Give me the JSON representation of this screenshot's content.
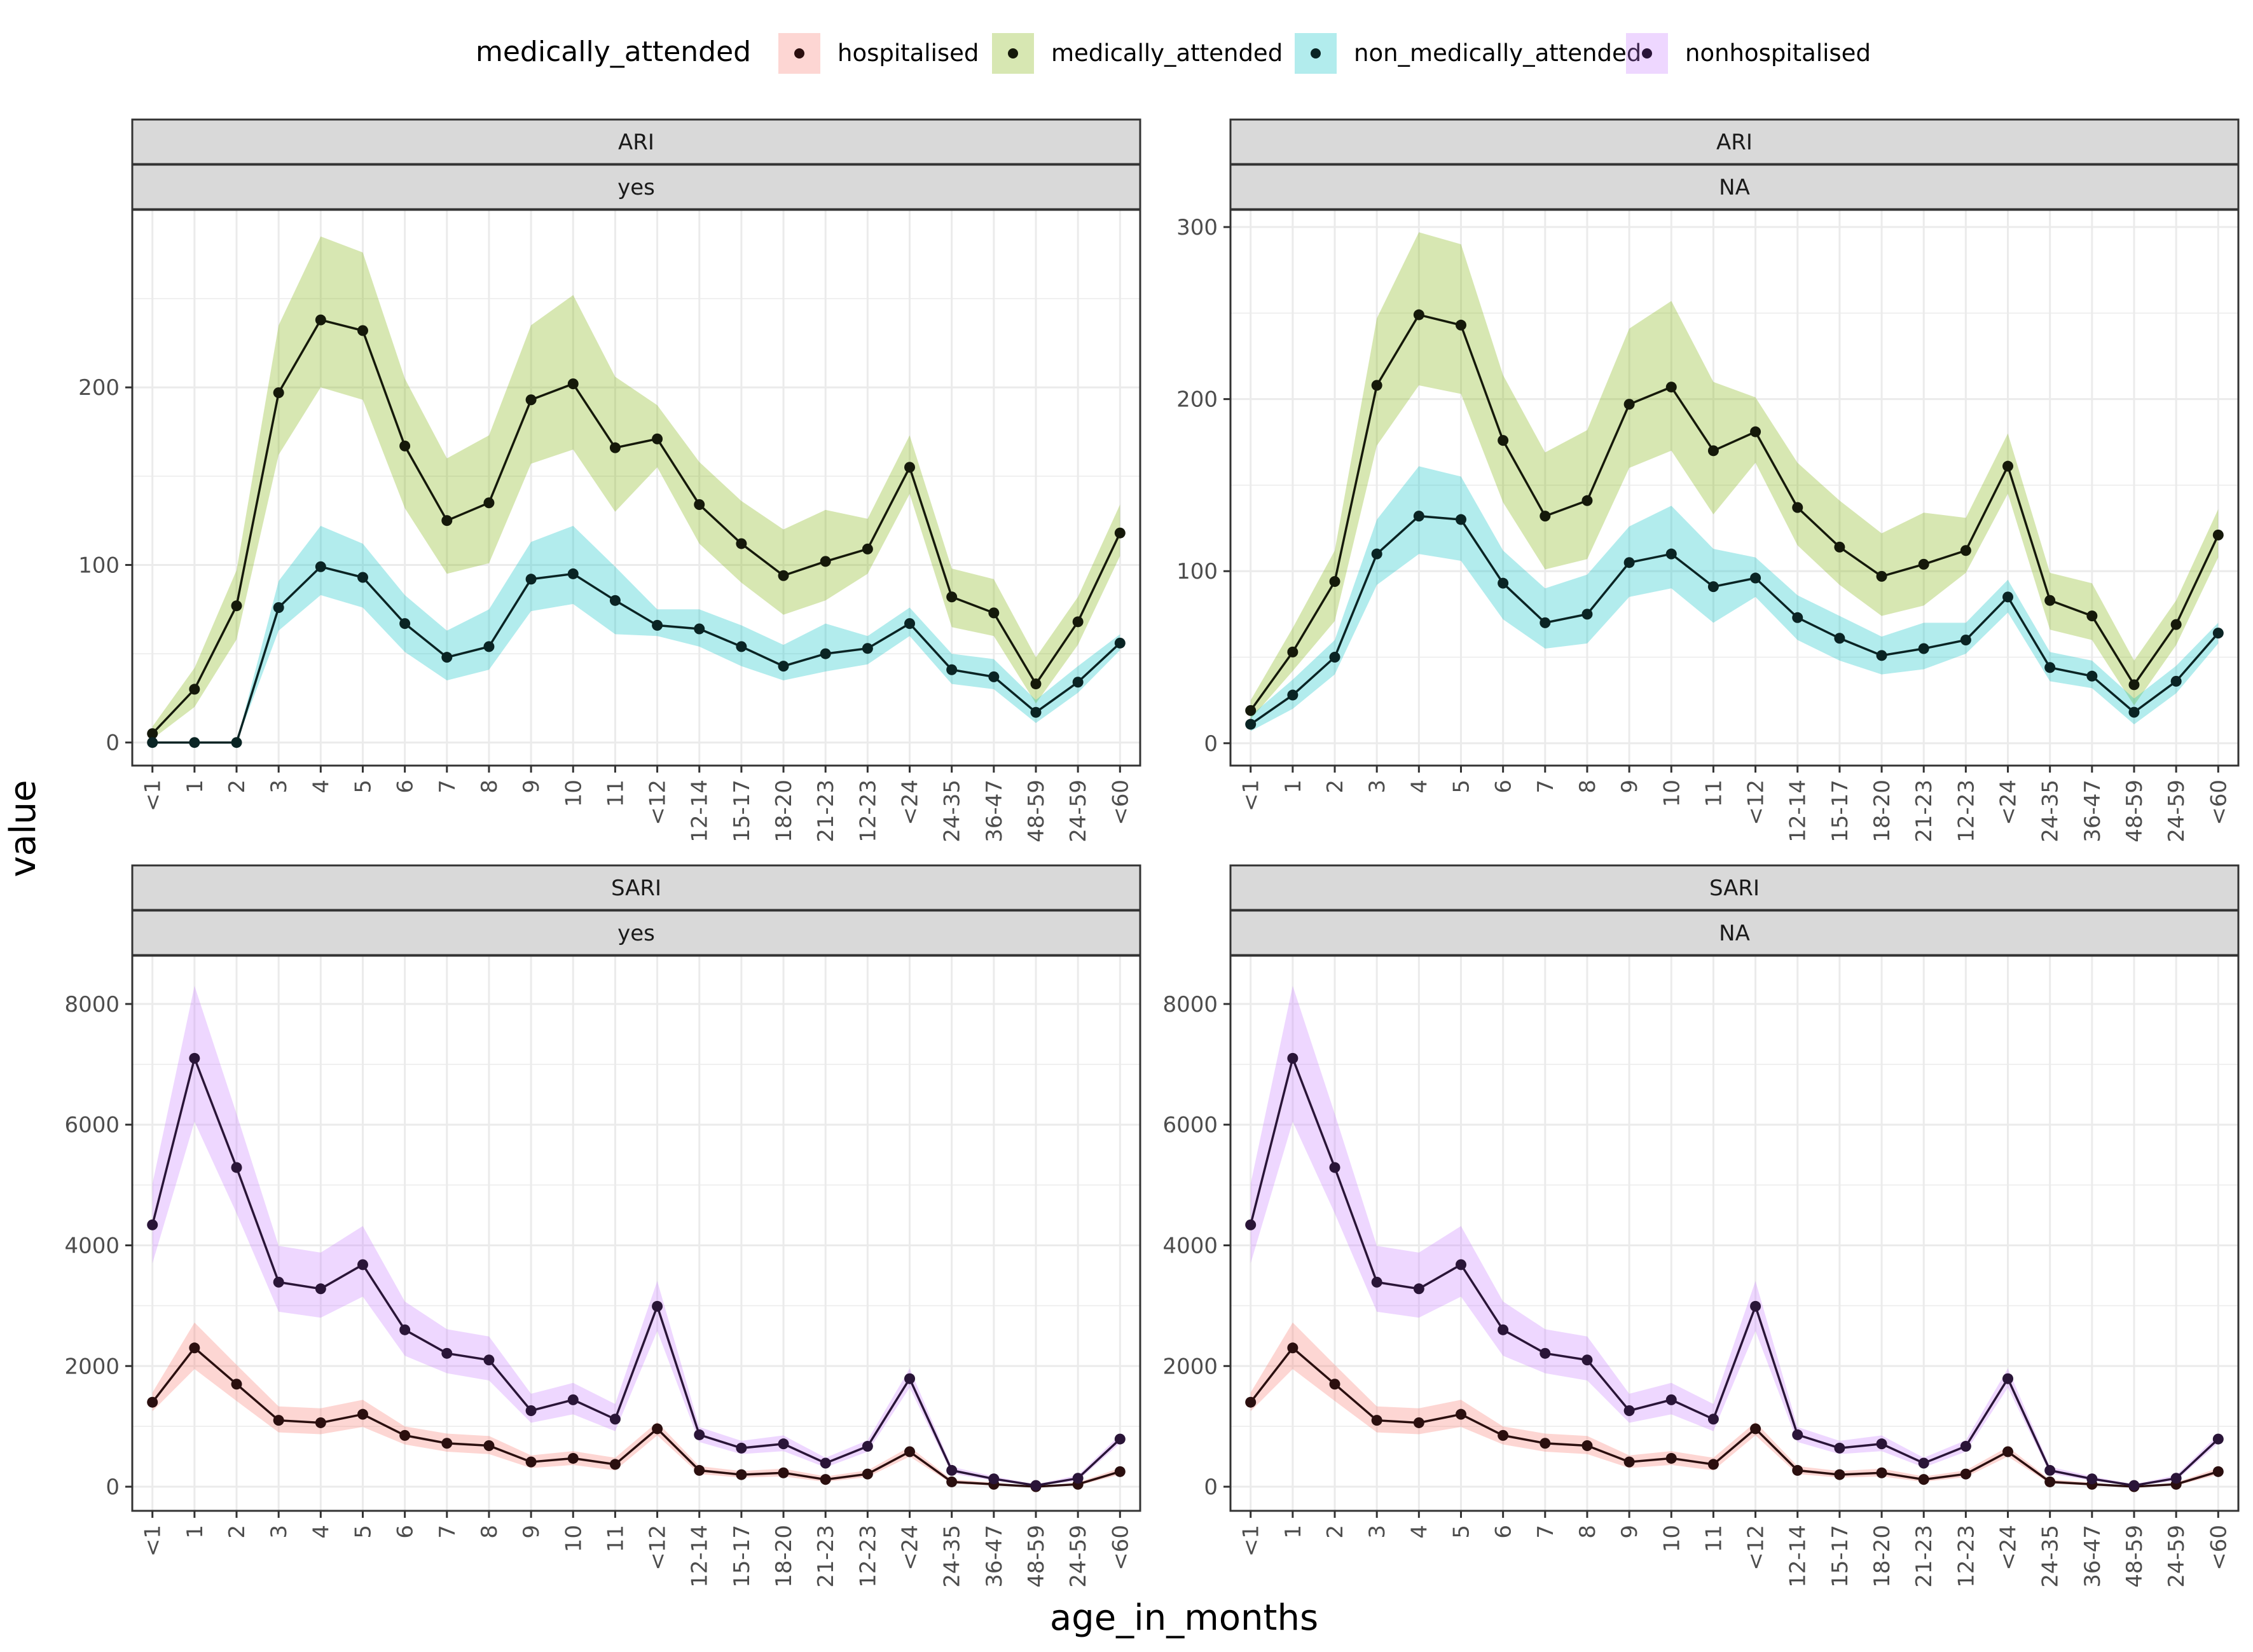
{
  "chart_data": {
    "type": "line",
    "xlabel": "age_in_months",
    "ylabel": "value",
    "legend": {
      "title": "medically_attended",
      "position": "top",
      "entries": [
        {
          "name": "hospitalised",
          "fill": "#F8766D"
        },
        {
          "name": "medically_attended",
          "fill": "#7CAE00"
        },
        {
          "name": "non_medically_attended",
          "fill": "#00BFC4"
        },
        {
          "name": "nonhospitalised",
          "fill": "#C77CFF"
        }
      ]
    },
    "colors": {
      "hospitalised": "#F8766D",
      "medically_attended": "#7CAE00",
      "non_medically_attended": "#00BFC4",
      "nonhospitalised": "#C77CFF",
      "line_hospitalised": "#2b0f0f",
      "line_medically_attended": "#15190a",
      "line_non_medically_attended": "#0a2424",
      "line_nonhospitalised": "#2a1538"
    },
    "categories": [
      "<1",
      "1",
      "2",
      "3",
      "4",
      "5",
      "6",
      "7",
      "8",
      "9",
      "10",
      "11",
      "<12",
      "12-14",
      "15-17",
      "18-20",
      "21-23",
      "12-23",
      "<24",
      "24-35",
      "36-47",
      "48-59",
      "24-59",
      "<60"
    ],
    "panels": [
      {
        "strip_top": "ARI",
        "strip_bottom": "yes",
        "ylim": [
          -13,
          300
        ],
        "yticks": [
          0,
          100,
          200
        ],
        "series": [
          {
            "name": "medically_attended",
            "values": [
              5,
              30,
              77,
              197,
              238,
              232,
              167,
              125,
              135,
              193,
              202,
              166,
              171,
              134,
              112,
              94,
              102,
              109,
              155,
              82,
              73,
              33,
              68,
              118
            ],
            "lower": [
              2,
              20,
              58,
              162,
              200,
              193,
              132,
              95,
              101,
              157,
              165,
              130,
              155,
              112,
              90,
              72,
              80,
              95,
              140,
              65,
              60,
              22,
              55,
              105
            ],
            "upper": [
              9,
              42,
              97,
              235,
              285,
              276,
              205,
              160,
              173,
              235,
              252,
              206,
              190,
              158,
              136,
              120,
              131,
              126,
              173,
              98,
              92,
              48,
              82,
              134
            ]
          },
          {
            "name": "non_medically_attended",
            "values": [
              0,
              0,
              0,
              76,
              99,
              93,
              67,
              48,
              54,
              92,
              95,
              80,
              66,
              64,
              54,
              43,
              50,
              53,
              67,
              41,
              37,
              17,
              34,
              56
            ],
            "lower": [
              0,
              0,
              0,
              63,
              83,
              76,
              51,
              35,
              41,
              74,
              78,
              61,
              60,
              54,
              43,
              35,
              40,
              44,
              60,
              33,
              30,
              11,
              28,
              52
            ],
            "upper": [
              0,
              0,
              0,
              91,
              122,
              112,
              83,
              63,
              75,
              113,
              122,
              99,
              75,
              75,
              66,
              55,
              67,
              60,
              76,
              50,
              47,
              24,
              43,
              61
            ]
          }
        ]
      },
      {
        "strip_top": "ARI",
        "strip_bottom": "NA",
        "ylim": [
          -13,
          310
        ],
        "yticks": [
          0,
          100,
          200,
          300
        ],
        "series": [
          {
            "name": "medically_attended",
            "values": [
              19,
              53,
              94,
              208,
              249,
              243,
              176,
              132,
              141,
              197,
              207,
              170,
              181,
              137,
              114,
              97,
              104,
              112,
              161,
              83,
              74,
              34,
              69,
              121
            ],
            "lower": [
              14,
              42,
              71,
              173,
              208,
              203,
              140,
              101,
              107,
              160,
              170,
              133,
              163,
              115,
              92,
              74,
              80,
              99,
              145,
              66,
              60,
              22,
              57,
              108
            ],
            "upper": [
              25,
              67,
              112,
              247,
              297,
              290,
              214,
              169,
              182,
              241,
              257,
              210,
              201,
              163,
              141,
              122,
              134,
              131,
              180,
              99,
              93,
              48,
              83,
              136
            ]
          },
          {
            "name": "non_medically_attended",
            "values": [
              11,
              28,
              50,
              110,
              132,
              130,
              93,
              70,
              75,
              105,
              110,
              91,
              96,
              73,
              61,
              51,
              55,
              60,
              85,
              44,
              39,
              18,
              36,
              64
            ],
            "lower": [
              7,
              20,
              40,
              92,
              110,
              106,
              72,
              55,
              58,
              85,
              90,
              70,
              85,
              60,
              48,
              40,
              43,
              52,
              76,
              36,
              32,
              11,
              29,
              58
            ],
            "upper": [
              16,
              37,
              60,
              130,
              161,
              155,
              112,
              90,
              98,
              126,
              138,
              113,
              108,
              86,
              74,
              62,
              70,
              70,
              95,
              53,
              48,
              26,
              45,
              70
            ]
          }
        ]
      },
      {
        "strip_top": "SARI",
        "strip_bottom": "yes",
        "ylim": [
          -400,
          8800
        ],
        "yticks": [
          0,
          2000,
          4000,
          6000,
          8000
        ],
        "series": [
          {
            "name": "hospitalised",
            "values": [
              1400,
              2300,
              1700,
              1100,
              1060,
              1200,
              850,
              720,
              680,
              410,
              470,
              370,
              960,
              270,
              200,
              230,
              120,
              210,
              580,
              80,
              40,
              0,
              40,
              250
            ],
            "lower": [
              1250,
              1950,
              1420,
              900,
              870,
              990,
              700,
              580,
              540,
              310,
              360,
              270,
              850,
              210,
              150,
              170,
              80,
              160,
              500,
              50,
              20,
              0,
              20,
              200
            ],
            "upper": [
              1560,
              2720,
              2020,
              1330,
              1300,
              1440,
              1000,
              880,
              840,
              520,
              590,
              480,
              1070,
              340,
              260,
              300,
              170,
              270,
              660,
              120,
              70,
              0,
              70,
              310
            ]
          },
          {
            "name": "nonhospitalised",
            "values": [
              4340,
              7100,
              5290,
              3390,
              3280,
              3680,
              2600,
              2210,
              2100,
              1260,
              1440,
              1120,
              2990,
              860,
              640,
              710,
              390,
              670,
              1790,
              270,
              130,
              20,
              140,
              790
            ],
            "lower": [
              3700,
              6050,
              4530,
              2900,
              2800,
              3150,
              2170,
              1880,
              1760,
              1060,
              1200,
              920,
              2580,
              740,
              540,
              590,
              320,
              580,
              1640,
              220,
              100,
              10,
              100,
              720
            ],
            "upper": [
              5020,
              8300,
              6180,
              3990,
              3880,
              4320,
              3070,
              2610,
              2490,
              1540,
              1720,
              1370,
              3410,
              990,
              760,
              850,
              480,
              770,
              1960,
              330,
              170,
              40,
              190,
              860
            ]
          }
        ]
      },
      {
        "strip_top": "SARI",
        "strip_bottom": "NA",
        "ylim": [
          -400,
          8800
        ],
        "yticks": [
          0,
          2000,
          4000,
          6000,
          8000
        ],
        "series": [
          {
            "name": "hospitalised",
            "values": [
              1400,
              2300,
              1700,
              1100,
              1060,
              1200,
              850,
              720,
              680,
              410,
              470,
              370,
              960,
              270,
              200,
              230,
              120,
              210,
              580,
              80,
              40,
              0,
              40,
              250
            ],
            "lower": [
              1250,
              1950,
              1420,
              900,
              870,
              990,
              700,
              580,
              540,
              310,
              360,
              270,
              850,
              210,
              150,
              170,
              80,
              160,
              500,
              50,
              20,
              0,
              20,
              200
            ],
            "upper": [
              1560,
              2720,
              2020,
              1330,
              1300,
              1440,
              1000,
              880,
              840,
              520,
              590,
              480,
              1070,
              340,
              260,
              300,
              170,
              270,
              660,
              120,
              70,
              0,
              70,
              310
            ]
          },
          {
            "name": "nonhospitalised",
            "values": [
              4340,
              7100,
              5290,
              3390,
              3280,
              3680,
              2600,
              2210,
              2100,
              1260,
              1440,
              1120,
              2990,
              860,
              640,
              710,
              390,
              670,
              1790,
              270,
              130,
              20,
              140,
              790
            ],
            "lower": [
              3700,
              6050,
              4530,
              2900,
              2800,
              3150,
              2170,
              1880,
              1760,
              1060,
              1200,
              920,
              2580,
              740,
              540,
              590,
              320,
              580,
              1640,
              220,
              100,
              10,
              100,
              720
            ],
            "upper": [
              5020,
              8300,
              6180,
              3990,
              3880,
              4320,
              3070,
              2610,
              2490,
              1540,
              1720,
              1370,
              3410,
              990,
              760,
              850,
              480,
              770,
              1960,
              330,
              170,
              40,
              190,
              860
            ]
          }
        ]
      }
    ]
  }
}
